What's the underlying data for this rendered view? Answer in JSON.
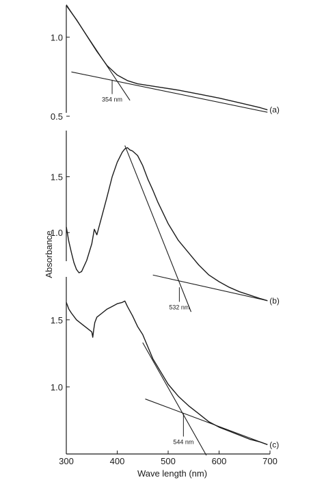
{
  "chart_data": {
    "type": "line",
    "xlabel": "Wave length (nm)",
    "ylabel": "Absorbance",
    "xlim": [
      300,
      700
    ],
    "xticks": [
      300,
      400,
      500,
      600,
      700
    ],
    "panels": [
      {
        "id": "a",
        "label": "(a)",
        "ylim": [
          0.5,
          1.2
        ],
        "yticks": [
          {
            "value": 0.5,
            "label": "0.5"
          },
          {
            "value": 1.0,
            "label": "1.0"
          }
        ],
        "curve": {
          "x": [
            300,
            320,
            340,
            360,
            380,
            400,
            420,
            440,
            480,
            520,
            560,
            600,
            640,
            680,
            695
          ],
          "y": [
            1.2,
            1.11,
            1.01,
            0.91,
            0.82,
            0.76,
            0.725,
            0.705,
            0.685,
            0.665,
            0.64,
            0.615,
            0.585,
            0.555,
            0.54
          ]
        },
        "tangent_lines": [
          {
            "x": [
              300,
              425
            ],
            "y": [
              1.205,
              0.6
            ]
          },
          {
            "x": [
              310,
              695
            ],
            "y": [
              0.78,
              0.525
            ]
          }
        ],
        "annotation": {
          "text": "354 nm",
          "x": 390,
          "y_top": 0.73,
          "y_bottom": 0.64
        }
      },
      {
        "id": "b",
        "label": "(b)",
        "ylim": [
          0.45,
          1.95
        ],
        "yticks": [
          {
            "value": 1.0,
            "label": "1.0"
          },
          {
            "value": 1.5,
            "label": "1.5"
          }
        ],
        "curve": {
          "x": [
            300,
            305,
            310,
            315,
            320,
            325,
            330,
            340,
            350,
            355,
            360,
            370,
            380,
            390,
            400,
            410,
            415,
            420,
            425,
            430,
            440,
            450,
            460,
            470,
            480,
            500,
            520,
            540,
            560,
            580,
            600,
            620,
            640,
            660,
            680,
            695
          ],
          "y": [
            1.05,
            0.92,
            0.82,
            0.73,
            0.67,
            0.64,
            0.65,
            0.75,
            0.9,
            1.03,
            0.98,
            1.15,
            1.32,
            1.5,
            1.63,
            1.72,
            1.75,
            1.76,
            1.74,
            1.73,
            1.69,
            1.6,
            1.48,
            1.38,
            1.27,
            1.08,
            0.93,
            0.82,
            0.71,
            0.62,
            0.56,
            0.51,
            0.47,
            0.44,
            0.41,
            0.39
          ]
        },
        "tangent_lines": [
          {
            "x": [
              415,
              545
            ],
            "y": [
              1.78,
              0.29
            ]
          },
          {
            "x": [
              470,
              695
            ],
            "y": [
              0.62,
              0.39
            ]
          }
        ],
        "annotation": {
          "text": "532 nm",
          "x": 522,
          "y_top": 0.51,
          "y_bottom": 0.38
        }
      },
      {
        "id": "c",
        "label": "(c)",
        "ylim": [
          0.5,
          1.82
        ],
        "yticks": [
          {
            "value": 1.0,
            "label": "1.0"
          },
          {
            "value": 1.5,
            "label": "1.5"
          }
        ],
        "curve": {
          "x": [
            300,
            305,
            310,
            320,
            330,
            340,
            350,
            352,
            354,
            356,
            360,
            370,
            380,
            390,
            400,
            410,
            415,
            420,
            430,
            440,
            450,
            470,
            500,
            520,
            540,
            560,
            580,
            600,
            620,
            640,
            660,
            680,
            695
          ],
          "y": [
            1.63,
            1.58,
            1.55,
            1.5,
            1.47,
            1.44,
            1.41,
            1.37,
            1.43,
            1.48,
            1.52,
            1.55,
            1.58,
            1.6,
            1.62,
            1.63,
            1.64,
            1.6,
            1.53,
            1.45,
            1.39,
            1.21,
            1.02,
            0.93,
            0.86,
            0.8,
            0.74,
            0.7,
            0.67,
            0.64,
            0.61,
            0.59,
            0.57
          ]
        },
        "tangent_lines": [
          {
            "x": [
              450,
              575
            ],
            "y": [
              1.33,
              0.49
            ]
          },
          {
            "x": [
              455,
              695
            ],
            "y": [
              0.91,
              0.57
            ]
          }
        ],
        "annotation": {
          "text": "544 nm",
          "x": 530,
          "y_top": 0.8,
          "y_bottom": 0.63
        }
      }
    ]
  },
  "style": {
    "line_color": "#1a1a1a",
    "background": "#ffffff"
  }
}
